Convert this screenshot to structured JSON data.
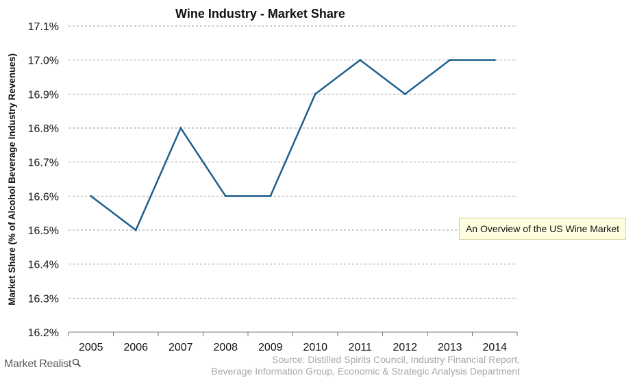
{
  "chart_data": {
    "type": "line",
    "title": "Wine Industry - Market Share",
    "ylabel": "Market Share (% of Alcohol Beverage Industry Revenues)",
    "xlabel": "",
    "categories": [
      "2005",
      "2006",
      "2007",
      "2008",
      "2009",
      "2010",
      "2011",
      "2012",
      "2013",
      "2014"
    ],
    "series": [
      {
        "values": [
          16.6,
          16.5,
          16.8,
          16.6,
          16.6,
          16.9,
          17.0,
          16.9,
          17.0,
          17.0
        ]
      }
    ],
    "ylim": [
      16.2,
      17.1
    ],
    "yticks": [
      16.2,
      16.3,
      16.4,
      16.5,
      16.6,
      16.7,
      16.8,
      16.9,
      17.0,
      17.1
    ],
    "ytick_labels": [
      "16.2%",
      "16.3%",
      "16.4%",
      "16.5%",
      "16.6%",
      "16.7%",
      "16.8%",
      "16.9%",
      "17.0%",
      "17.1%"
    ],
    "grid": true,
    "grid_style": "dashed horizontal",
    "legend": "none",
    "line_color": "#1f5f8b",
    "annotation": "An Overview of the US Wine Market"
  },
  "footer": {
    "brand": "Market Realist",
    "brand_icon": "magnifier-icon",
    "source_line1": "Source: Distilled Spirits Council, Industry Financial Report,",
    "source_line2": "Beverage Information Group, Economic & Strategic Analysis Department"
  }
}
